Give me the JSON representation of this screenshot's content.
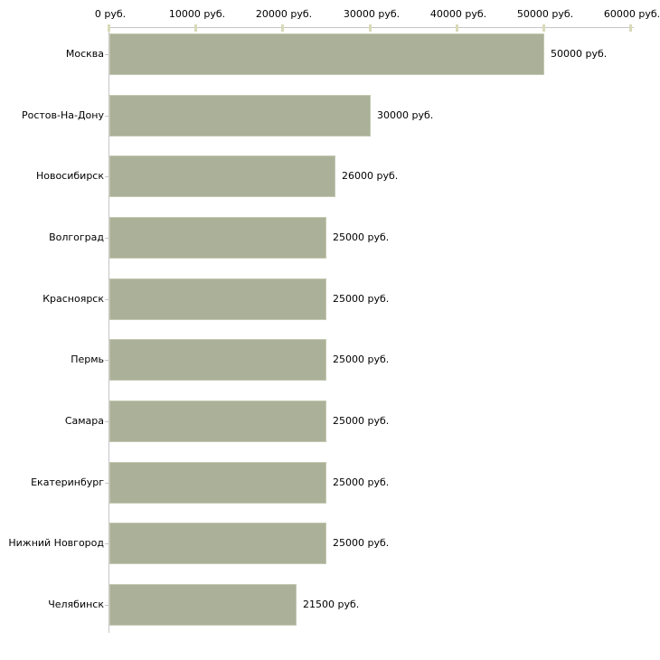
{
  "chart_data": {
    "type": "bar",
    "orientation": "horizontal",
    "title": "",
    "xlabel": "",
    "ylabel": "",
    "categories": [
      "Москва",
      "Ростов-На-Дону",
      "Новосибирск",
      "Волгоград",
      "Красноярск",
      "Пермь",
      "Самара",
      "Екатеринбург",
      "Нижний Новгород",
      "Челябинск"
    ],
    "values": [
      50000,
      30000,
      26000,
      25000,
      25000,
      25000,
      25000,
      25000,
      25000,
      21500
    ],
    "value_labels": [
      "50000 руб.",
      "30000 руб.",
      "26000 руб.",
      "25000 руб.",
      "25000 руб.",
      "25000 руб.",
      "25000 руб.",
      "25000 руб.",
      "25000 руб.",
      "21500 руб."
    ],
    "xlim": [
      0,
      60000
    ],
    "x_ticks": [
      0,
      10000,
      20000,
      30000,
      40000,
      50000,
      60000
    ],
    "x_tick_labels": [
      "0 руб.",
      "10000 руб.",
      "20000 руб.",
      "30000 руб.",
      "40000 руб.",
      "50000 руб.",
      "60000 руб."
    ],
    "grid": false,
    "legend": false,
    "axis_position": "top",
    "colors": {
      "bar_fill": "#abb198",
      "bar_border": "#c3c8b1",
      "axis_line": "#c6c6c6",
      "tick_mark": "#d8dbb8",
      "text": "#000000",
      "background": "#ffffff"
    }
  }
}
